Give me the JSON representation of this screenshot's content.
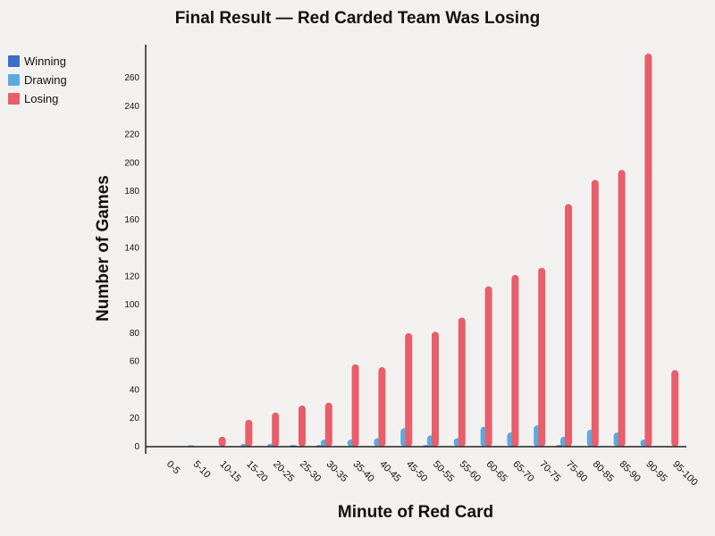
{
  "chart_data": {
    "type": "bar",
    "title": "Final Result — Red Carded Team Was Losing",
    "xlabel": "Minute of Red Card",
    "ylabel": "Number of Games",
    "categories": [
      "0-5",
      "5-10",
      "10-15",
      "15-20",
      "20-25",
      "25-30",
      "30-35",
      "35-40",
      "40-45",
      "45-50",
      "50-55",
      "55-60",
      "60-65",
      "65-70",
      "70-75",
      "75-80",
      "80-85",
      "85-90",
      "90-95",
      "95-100"
    ],
    "series": [
      {
        "name": "Winning",
        "color": "#3d6fc7",
        "values": [
          0,
          0,
          0,
          0,
          0,
          1,
          1,
          0,
          0,
          0,
          1,
          0,
          0,
          0,
          0,
          1,
          0,
          0,
          0,
          0
        ]
      },
      {
        "name": "Drawing",
        "color": "#5aaae0",
        "values": [
          0,
          1,
          0,
          2,
          2,
          0,
          5,
          5,
          6,
          13,
          8,
          6,
          14,
          10,
          15,
          7,
          12,
          10,
          5,
          0
        ]
      },
      {
        "name": "Losing",
        "color": "#e85e6a",
        "values": [
          0,
          0,
          7,
          19,
          24,
          29,
          31,
          58,
          56,
          80,
          81,
          91,
          113,
          121,
          126,
          171,
          188,
          195,
          277,
          54
        ]
      }
    ],
    "yticks": [
      0,
      20,
      40,
      60,
      80,
      100,
      120,
      140,
      160,
      180,
      200,
      220,
      240,
      260
    ],
    "ylim": [
      0,
      285
    ],
    "grid": false,
    "legend_position": "top-left"
  }
}
